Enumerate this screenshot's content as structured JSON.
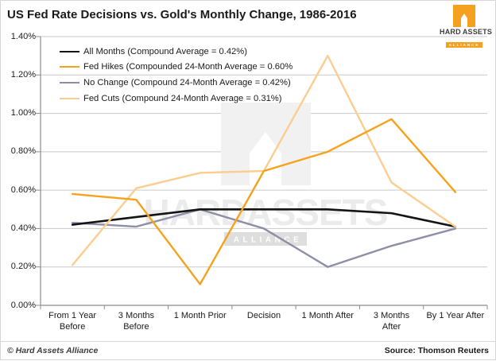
{
  "header": {
    "title": "US Fed Rate Decisions vs. Gold's Monthly Change, 1986-2016",
    "logo": {
      "line1": "HARD",
      "line2": "ASSETS",
      "banner": "ALLIANCE",
      "accent_color": "#f5a01e"
    }
  },
  "watermark": {
    "text": "HARDASSETS",
    "banner": "ALLIANCE"
  },
  "chart_data": {
    "type": "line",
    "title": "US Fed Rate Decisions vs. Gold's Monthly Change, 1986-2016",
    "categories": [
      "From 1 Year\nBefore",
      "3 Months\nBefore",
      "1 Month Prior",
      "Decision",
      "1 Month After",
      "3 Months\nAfter",
      "By 1 Year After"
    ],
    "xlabel": "",
    "ylabel": "",
    "ylim": [
      0,
      1.4
    ],
    "yticks": [
      0,
      0.2,
      0.4,
      0.6,
      0.8,
      1.0,
      1.2,
      1.4
    ],
    "ytick_labels": [
      "0.00%",
      "0.20%",
      "0.40%",
      "0.60%",
      "0.80%",
      "1.00%",
      "1.20%",
      "1.40%"
    ],
    "grid": "horizontal",
    "legend_position": "top-left",
    "gridline_color": "#c9c9c9",
    "axis_color": "#8c8c8c",
    "series": [
      {
        "name": "All Months",
        "label": "All Months (Compound Average = 0.42%)",
        "color": "#141414",
        "stroke_width": 2.6,
        "values": [
          0.42,
          0.46,
          0.5,
          0.5,
          0.5,
          0.48,
          0.41
        ]
      },
      {
        "name": "Fed Hikes",
        "label": "Fed Hikes (Compounded 24-Month Average = 0.60%",
        "color": "#f6a21d",
        "stroke_width": 2.4,
        "values": [
          0.58,
          0.55,
          0.11,
          0.7,
          0.8,
          0.97,
          0.59
        ]
      },
      {
        "name": "No Change",
        "label": "No Change (Compound 24-Month Average = 0.42%)",
        "color": "#8e8ea6",
        "stroke_width": 2.4,
        "values": [
          0.43,
          0.41,
          0.5,
          0.4,
          0.2,
          0.31,
          0.4
        ]
      },
      {
        "name": "Fed Cuts",
        "label": "Fed Cuts (Compound 24-Month Average = 0.31%)",
        "color": "#fbcd90",
        "stroke_width": 2.4,
        "values": [
          0.21,
          0.61,
          0.69,
          0.7,
          1.3,
          0.64,
          0.41
        ]
      }
    ]
  },
  "footer": {
    "copyright": "© Hard Assets Alliance",
    "source": "Source: Thomson Reuters"
  }
}
